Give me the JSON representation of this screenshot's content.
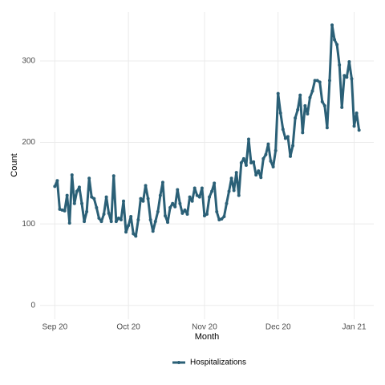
{
  "chart_data": {
    "type": "line",
    "x_label": "Month",
    "y_label": "Count",
    "x": [
      0,
      1,
      2,
      3,
      4,
      5,
      6,
      7,
      8,
      9,
      10,
      11,
      12,
      13,
      14,
      15,
      16,
      17,
      18,
      19,
      20,
      21,
      22,
      23,
      24,
      25,
      26,
      27,
      28,
      29,
      30,
      31,
      32,
      33,
      34,
      35,
      36,
      37,
      38,
      39,
      40,
      41,
      42,
      43,
      44,
      45,
      46,
      47,
      48,
      49,
      50,
      51,
      52,
      53,
      54,
      55,
      56,
      57,
      58,
      59,
      60,
      61,
      62,
      63,
      64,
      65,
      66,
      67,
      68,
      69,
      70,
      71,
      72,
      73,
      74,
      75,
      76,
      77,
      78,
      79,
      80,
      81,
      82,
      83,
      84,
      85,
      86,
      87,
      88,
      89,
      90,
      91,
      92,
      93,
      94,
      95,
      96,
      97,
      98,
      99,
      100,
      101,
      102,
      103,
      104,
      105,
      106,
      107,
      108,
      109,
      110,
      111,
      112,
      113,
      114,
      115,
      116,
      117,
      118,
      119,
      120,
      121,
      122,
      123,
      124
    ],
    "series": [
      {
        "name": "Hospitalizations",
        "color": "#2b6077",
        "values": [
          146,
          153,
          118,
          117,
          116,
          135,
          101,
          160,
          125,
          140,
          145,
          125,
          103,
          115,
          156,
          133,
          131,
          120,
          107,
          103,
          112,
          133,
          113,
          103,
          159,
          103,
          107,
          105,
          128,
          90,
          98,
          109,
          88,
          85,
          105,
          131,
          128,
          147,
          131,
          105,
          91,
          103,
          115,
          135,
          151,
          110,
          102,
          120,
          125,
          121,
          142,
          125,
          113,
          117,
          112,
          133,
          128,
          144,
          135,
          133,
          144,
          110,
          112,
          133,
          140,
          150,
          115,
          105,
          106,
          109,
          125,
          140,
          156,
          141,
          163,
          135,
          175,
          180,
          172,
          204,
          175,
          176,
          160,
          165,
          157,
          180,
          185,
          198,
          177,
          170,
          190,
          260,
          236,
          216,
          205,
          207,
          183,
          196,
          230,
          240,
          258,
          212,
          245,
          235,
          255,
          263,
          276,
          276,
          274,
          250,
          245,
          218,
          276,
          344,
          326,
          320,
          295,
          243,
          282,
          280,
          299,
          278,
          220,
          236,
          215
        ]
      }
    ],
    "xlim": [
      -6,
      130
    ],
    "xticks": [
      {
        "value": 0,
        "label": "Sep 20"
      },
      {
        "value": 30,
        "label": "Oct 20"
      },
      {
        "value": 61,
        "label": "Nov 20"
      },
      {
        "value": 91,
        "label": "Dec 20"
      },
      {
        "value": 122,
        "label": "Jan 21"
      }
    ],
    "ylim": [
      -17,
      360
    ],
    "yticks": [
      0,
      100,
      200,
      300
    ],
    "grid": true,
    "legend": "bottom"
  }
}
